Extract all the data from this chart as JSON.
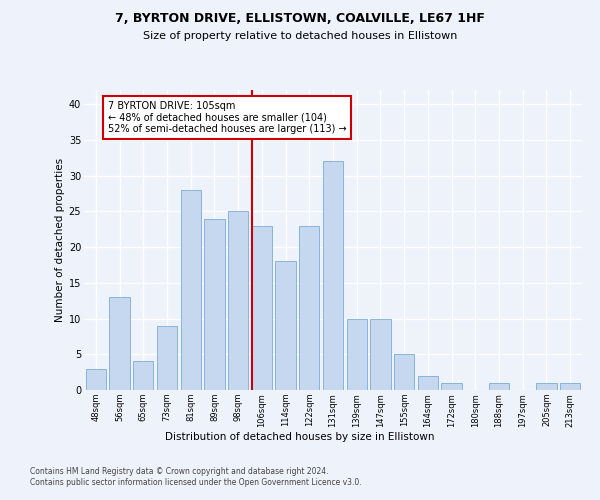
{
  "title1": "7, BYRTON DRIVE, ELLISTOWN, COALVILLE, LE67 1HF",
  "title2": "Size of property relative to detached houses in Ellistown",
  "xlabel": "Distribution of detached houses by size in Ellistown",
  "ylabel": "Number of detached properties",
  "categories": [
    "48sqm",
    "56sqm",
    "65sqm",
    "73sqm",
    "81sqm",
    "89sqm",
    "98sqm",
    "106sqm",
    "114sqm",
    "122sqm",
    "131sqm",
    "139sqm",
    "147sqm",
    "155sqm",
    "164sqm",
    "172sqm",
    "180sqm",
    "188sqm",
    "197sqm",
    "205sqm",
    "213sqm"
  ],
  "values": [
    3,
    13,
    4,
    9,
    28,
    24,
    25,
    23,
    18,
    23,
    32,
    10,
    10,
    5,
    2,
    1,
    0,
    1,
    0,
    1,
    1
  ],
  "bar_color": "#c5d8f0",
  "bar_edge_color": "#7badd4",
  "vline_color": "#cc0000",
  "annotation_text": "7 BYRTON DRIVE: 105sqm\n← 48% of detached houses are smaller (104)\n52% of semi-detached houses are larger (113) →",
  "annotation_box_color": "#ffffff",
  "annotation_box_edge": "#cc0000",
  "ylim": [
    0,
    42
  ],
  "yticks": [
    0,
    5,
    10,
    15,
    20,
    25,
    30,
    35,
    40
  ],
  "footer": "Contains HM Land Registry data © Crown copyright and database right 2024.\nContains public sector information licensed under the Open Government Licence v3.0.",
  "bg_color": "#eef2fb",
  "plot_bg_color": "#eef2fb"
}
